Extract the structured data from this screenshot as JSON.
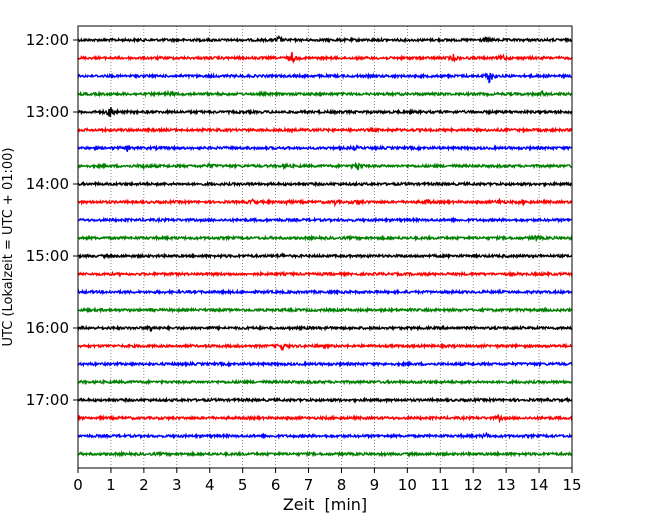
{
  "chart_data": {
    "type": "line",
    "title": "",
    "xlabel": "Zeit  [min]",
    "ylabel": "UTC (Lokalzeit = UTC + 01:00)",
    "xlim": [
      0,
      15
    ],
    "x_ticks": [
      "0",
      "1",
      "2",
      "3",
      "4",
      "5",
      "6",
      "7",
      "8",
      "9",
      "10",
      "11",
      "12",
      "13",
      "14",
      "15"
    ],
    "y_tick_labels": [
      "12:00",
      "13:00",
      "14:00",
      "15:00",
      "16:00",
      "17:00"
    ],
    "grid": "vertical dotted lines at each minute",
    "row_interval_minutes": 15,
    "row_colors": [
      "#000000",
      "#ff0000",
      "#0000ff",
      "#008000"
    ],
    "rows": [
      {
        "start": "12:00",
        "color": "#000000",
        "events": [
          [
            6.1,
            3
          ],
          [
            12.4,
            2
          ]
        ]
      },
      {
        "start": "12:15",
        "color": "#ff0000",
        "events": [
          [
            6.5,
            5
          ],
          [
            11.4,
            3
          ],
          [
            12.9,
            3
          ]
        ]
      },
      {
        "start": "12:30",
        "color": "#0000ff",
        "events": [
          [
            12.5,
            7
          ]
        ]
      },
      {
        "start": "12:45",
        "color": "#008000",
        "events": [
          [
            2.8,
            2
          ],
          [
            14.1,
            2
          ]
        ]
      },
      {
        "start": "13:00",
        "color": "#000000",
        "events": [
          [
            1.0,
            6
          ]
        ]
      },
      {
        "start": "13:15",
        "color": "#ff0000",
        "events": []
      },
      {
        "start": "13:30",
        "color": "#0000ff",
        "events": [
          [
            1.5,
            2
          ],
          [
            8.4,
            2
          ]
        ]
      },
      {
        "start": "13:45",
        "color": "#008000",
        "events": [
          [
            2.0,
            2
          ],
          [
            4.0,
            2
          ],
          [
            6.3,
            2
          ],
          [
            8.5,
            4
          ]
        ]
      },
      {
        "start": "14:00",
        "color": "#000000",
        "events": []
      },
      {
        "start": "14:15",
        "color": "#ff0000",
        "events": [
          [
            5.3,
            2
          ],
          [
            6.3,
            2
          ],
          [
            7.8,
            2
          ],
          [
            8.5,
            2
          ],
          [
            10.6,
            2
          ],
          [
            12.8,
            2
          ],
          [
            13.5,
            2
          ]
        ]
      },
      {
        "start": "14:30",
        "color": "#0000ff",
        "events": []
      },
      {
        "start": "14:45",
        "color": "#008000",
        "events": [
          [
            13.9,
            2
          ]
        ]
      },
      {
        "start": "15:00",
        "color": "#000000",
        "events": [
          [
            6.2,
            1
          ]
        ]
      },
      {
        "start": "15:15",
        "color": "#ff0000",
        "events": []
      },
      {
        "start": "15:30",
        "color": "#0000ff",
        "events": []
      },
      {
        "start": "15:45",
        "color": "#008000",
        "events": []
      },
      {
        "start": "16:00",
        "color": "#000000",
        "events": [
          [
            2.2,
            3
          ]
        ]
      },
      {
        "start": "16:15",
        "color": "#ff0000",
        "events": [
          [
            6.2,
            4
          ]
        ]
      },
      {
        "start": "16:30",
        "color": "#0000ff",
        "events": []
      },
      {
        "start": "16:45",
        "color": "#008000",
        "events": []
      },
      {
        "start": "17:00",
        "color": "#000000",
        "events": []
      },
      {
        "start": "17:15",
        "color": "#ff0000",
        "events": [
          [
            12.8,
            2
          ]
        ]
      },
      {
        "start": "17:30",
        "color": "#0000ff",
        "events": [
          [
            12.4,
            2
          ]
        ]
      },
      {
        "start": "17:45",
        "color": "#008000",
        "events": []
      }
    ]
  }
}
